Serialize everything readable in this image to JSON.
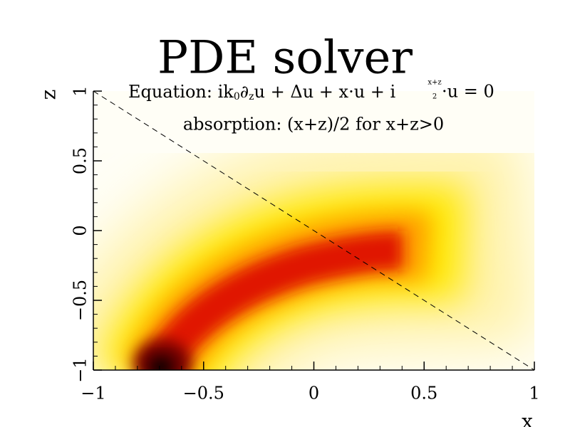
{
  "chart_data": {
    "type": "density",
    "title": "PDE solver",
    "equation": [
      "Equation: ik",
      "0",
      "∂",
      "z",
      "u + Δu + x·u + i ",
      "x+z",
      "2",
      "·u = 0"
    ],
    "subtitle": "absorption: (x+z)/2 for x+z>0",
    "x_label": "x",
    "y_label": "z",
    "xlim": [
      -1,
      1
    ],
    "ylim": [
      -1,
      1
    ],
    "xticks": [
      {
        "value": -1,
        "label": "−1"
      },
      {
        "value": -0.5,
        "label": "−0.5"
      },
      0,
      0.5,
      1
    ],
    "yticks": [
      {
        "value": -1,
        "label": "−1"
      },
      {
        "value": -0.5,
        "label": "−0.5"
      },
      0,
      0.5,
      1
    ],
    "line": {
      "x": [
        -1,
        1
      ],
      "y": [
        1,
        -1
      ]
    }
  }
}
